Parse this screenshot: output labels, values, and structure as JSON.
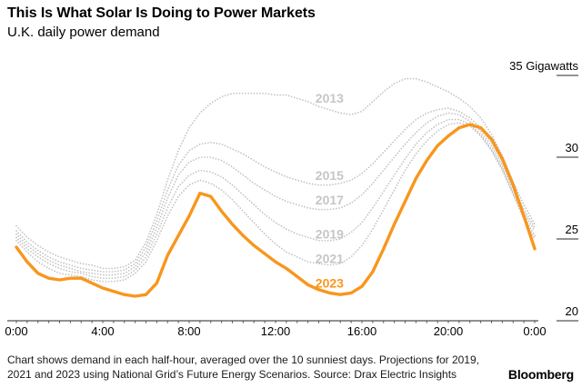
{
  "header": {
    "title": "This Is What Solar Is Doing to Power Markets",
    "subtitle": "U.K. daily power demand"
  },
  "footer": {
    "note": "Chart shows demand in each half-hour, averaged over the 10 sunniest days. Projections for 2019, 2021 and 2023 using National Grid’s Future Energy Scenarios. Source: Drax Electric Insights",
    "brand": "Bloomberg"
  },
  "chart_data": {
    "type": "line",
    "title": "This Is What Solar Is Doing to Power Markets",
    "subtitle": "U.K. daily power demand",
    "ylabel": "Gigawatts",
    "xlabel": "",
    "ylim": [
      20,
      35
    ],
    "grid": false,
    "legend_position": "inline-labels",
    "x_unit": "hour-of-day",
    "x_start_hour": 0,
    "x_end_hour": 24,
    "x_step_hours": 0.5,
    "x_tick_hours": [
      0,
      4,
      8,
      12,
      16,
      20,
      24
    ],
    "x_tick_labels": [
      "0:00",
      "4:00",
      "8:00",
      "12:00",
      "16:00",
      "20:00",
      "0:00"
    ],
    "y_ticks": [
      {
        "value": 35,
        "label": "35 Gigawatts"
      },
      {
        "value": 30,
        "label": "30"
      },
      {
        "value": 25,
        "label": "25"
      },
      {
        "value": 20,
        "label": "20"
      }
    ],
    "colors": {
      "history_line": "#bfbfbf",
      "history_label": "#c6c6c6",
      "highlight": "#f8961d",
      "axis": "#6f6f6f",
      "tick": "#555555",
      "text": "#000000"
    },
    "series": [
      {
        "name": "2013",
        "role": "history",
        "style": "dotted",
        "label_t": 14.5,
        "label_gw": 33.6,
        "values": [
          25.8,
          25.1,
          24.6,
          24.2,
          23.9,
          23.7,
          23.5,
          23.4,
          23.2,
          23.2,
          23.3,
          23.7,
          24.8,
          26.5,
          28.6,
          30.4,
          31.8,
          32.7,
          33.3,
          33.7,
          33.9,
          33.9,
          33.9,
          33.9,
          33.8,
          33.8,
          33.6,
          33.4,
          33.1,
          32.9,
          32.7,
          32.6,
          32.8,
          33.4,
          34.0,
          34.5,
          34.8,
          34.8,
          34.6,
          34.3,
          34.0,
          33.6,
          33.1,
          32.4,
          31.4,
          30.1,
          28.5,
          27.1,
          25.9
        ]
      },
      {
        "name": "2015",
        "role": "history",
        "style": "dotted",
        "label_t": 14.5,
        "label_gw": 28.9,
        "values": [
          25.5,
          24.8,
          24.3,
          23.9,
          23.6,
          23.4,
          23.2,
          23.1,
          23.0,
          23.0,
          23.1,
          23.5,
          24.5,
          26.1,
          28.0,
          29.5,
          30.4,
          30.8,
          30.9,
          30.8,
          30.5,
          30.2,
          29.8,
          29.4,
          29.1,
          28.8,
          28.6,
          28.4,
          28.3,
          28.3,
          28.4,
          28.6,
          29.0,
          29.6,
          30.3,
          31.0,
          31.7,
          32.3,
          32.7,
          32.9,
          33.0,
          32.8,
          32.4,
          31.8,
          30.9,
          29.7,
          28.2,
          26.8,
          25.7
        ]
      },
      {
        "name": "2017",
        "role": "history",
        "style": "dotted",
        "label_t": 14.5,
        "label_gw": 27.4,
        "values": [
          25.3,
          24.6,
          24.1,
          23.7,
          23.4,
          23.2,
          23.0,
          22.9,
          22.8,
          22.8,
          22.9,
          23.3,
          24.2,
          25.7,
          27.5,
          28.9,
          29.7,
          30.0,
          30.0,
          29.8,
          29.4,
          28.9,
          28.4,
          28.0,
          27.6,
          27.3,
          27.1,
          26.9,
          26.8,
          26.8,
          26.9,
          27.2,
          27.7,
          28.4,
          29.2,
          30.0,
          30.8,
          31.5,
          32.1,
          32.5,
          32.7,
          32.6,
          32.2,
          31.6,
          30.7,
          29.5,
          28.0,
          26.6,
          25.5
        ]
      },
      {
        "name": "2019",
        "role": "history",
        "style": "dotted",
        "label_t": 14.5,
        "label_gw": 25.3,
        "values": [
          25.1,
          24.4,
          23.9,
          23.5,
          23.2,
          23.0,
          22.9,
          22.7,
          22.6,
          22.6,
          22.7,
          23.1,
          23.9,
          25.3,
          26.9,
          28.2,
          28.9,
          29.2,
          29.1,
          28.8,
          28.3,
          27.7,
          27.1,
          26.5,
          26.0,
          25.6,
          25.3,
          25.1,
          24.9,
          24.9,
          25.0,
          25.4,
          26.0,
          26.9,
          27.9,
          28.9,
          29.9,
          30.8,
          31.5,
          32.0,
          32.3,
          32.3,
          32.0,
          31.4,
          30.5,
          29.3,
          27.8,
          26.4,
          25.2
        ]
      },
      {
        "name": "2021",
        "role": "history",
        "style": "dotted",
        "label_t": 14.5,
        "label_gw": 23.8,
        "values": [
          24.9,
          24.2,
          23.6,
          23.2,
          22.9,
          22.8,
          22.7,
          22.5,
          22.4,
          22.4,
          22.5,
          22.9,
          23.6,
          24.9,
          26.4,
          27.6,
          28.3,
          28.6,
          28.4,
          28.0,
          27.4,
          26.7,
          26.0,
          25.3,
          24.7,
          24.2,
          23.9,
          23.6,
          23.5,
          23.4,
          23.5,
          23.9,
          24.6,
          25.6,
          26.8,
          28.0,
          29.2,
          30.2,
          31.0,
          31.6,
          32.0,
          32.1,
          31.9,
          31.3,
          30.4,
          29.2,
          27.7,
          26.2,
          25.0
        ]
      },
      {
        "name": "2023",
        "role": "highlight",
        "style": "solid",
        "label_t": 14.5,
        "label_gw": 22.3,
        "values": [
          24.5,
          23.6,
          22.9,
          22.6,
          22.5,
          22.6,
          22.6,
          22.3,
          22.0,
          21.8,
          21.6,
          21.5,
          21.6,
          22.3,
          24.0,
          25.2,
          26.4,
          27.8,
          27.6,
          26.7,
          25.9,
          25.2,
          24.6,
          24.1,
          23.6,
          23.2,
          22.7,
          22.2,
          21.9,
          21.7,
          21.6,
          21.7,
          22.1,
          23.0,
          24.4,
          25.9,
          27.3,
          28.7,
          29.8,
          30.7,
          31.3,
          31.8,
          32.0,
          31.8,
          31.1,
          29.9,
          28.3,
          26.4,
          24.4
        ]
      }
    ]
  }
}
